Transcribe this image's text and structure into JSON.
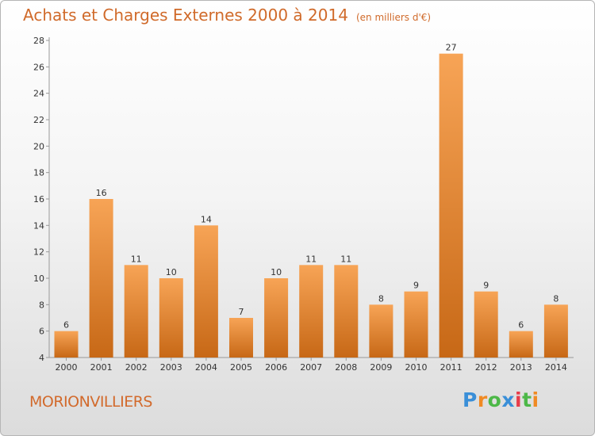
{
  "chart_data": {
    "type": "bar",
    "title": "Achats et Charges Externes 2000 à 2014",
    "unit": "(en milliers d'€)",
    "categories": [
      "2000",
      "2001",
      "2002",
      "2003",
      "2004",
      "2005",
      "2006",
      "2007",
      "2008",
      "2009",
      "2010",
      "2011",
      "2012",
      "2013",
      "2014"
    ],
    "values": [
      6,
      16,
      11,
      10,
      14,
      7,
      10,
      11,
      11,
      8,
      9,
      27,
      9,
      6,
      8
    ],
    "ylim": [
      4,
      28
    ],
    "yticks": [
      4,
      6,
      8,
      10,
      12,
      14,
      16,
      18,
      20,
      22,
      24,
      26,
      28
    ],
    "grid": false,
    "bar_color_light": "#f7a456",
    "bar_color_dark": "#c76816"
  },
  "place": "MORIONVILLIERS",
  "logo": {
    "text": "Proxiti",
    "letters": [
      {
        "ch": "P",
        "color": "#3a8fd8"
      },
      {
        "ch": "r",
        "color": "#f08a24"
      },
      {
        "ch": "o",
        "color": "#4db848"
      },
      {
        "ch": "x",
        "color": "#3a8fd8"
      },
      {
        "ch": "i",
        "color": "#e83d4a"
      },
      {
        "ch": "t",
        "color": "#4db848"
      },
      {
        "ch": "i",
        "color": "#f08a24"
      }
    ]
  }
}
